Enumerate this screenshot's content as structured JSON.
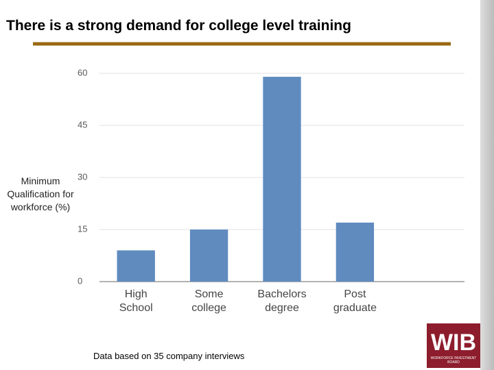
{
  "chart_data": {
    "type": "bar",
    "title": "There is a strong demand for college level training",
    "y_label": "Minimum Qualification for workforce (%)",
    "categories": [
      "High School",
      "Some college",
      "Bachelors degree",
      "Post graduate"
    ],
    "values": [
      9,
      15,
      59,
      17
    ],
    "color": "#5f8bbf",
    "ylim": [
      0,
      60
    ],
    "yticks": [
      0,
      15,
      30,
      45,
      60
    ],
    "grid": true,
    "footnote": "Data based on 35 company interviews"
  },
  "logo": {
    "text": "WIB",
    "caption": "WORKFORCE INVESTMENT BOARD"
  }
}
